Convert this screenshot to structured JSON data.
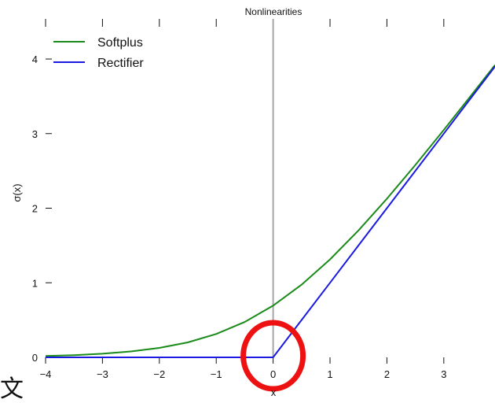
{
  "chart_data": {
    "type": "line",
    "title": "Nonlinearities",
    "xlabel": "x",
    "ylabel": "σ(x)",
    "xlim": [
      -4,
      3.9
    ],
    "ylim": [
      0,
      4
    ],
    "x_ticks": [
      -4,
      -3,
      -2,
      -1,
      0,
      1,
      2,
      3
    ],
    "y_ticks": [
      0,
      1,
      2,
      3,
      4
    ],
    "x": [
      -4,
      -3.5,
      -3,
      -2.5,
      -2,
      -1.5,
      -1,
      -0.5,
      0,
      0.5,
      1,
      1.5,
      2,
      2.5,
      3,
      3.5,
      3.9
    ],
    "series": [
      {
        "name": "Softplus",
        "color": "#1a8a1a",
        "values": [
          0.018,
          0.03,
          0.049,
          0.079,
          0.127,
          0.201,
          0.313,
          0.474,
          0.693,
          0.974,
          1.313,
          1.701,
          2.127,
          2.579,
          3.049,
          3.53,
          3.92
        ]
      },
      {
        "name": "Rectifier",
        "color": "#1a1ae0",
        "values": [
          0,
          0,
          0,
          0,
          0,
          0,
          0,
          0,
          0,
          0.5,
          1,
          1.5,
          2,
          2.5,
          3,
          3.5,
          3.9
        ]
      }
    ],
    "center_line_x": 0,
    "center_line_color": "#a6a6a6",
    "annotation": {
      "type": "circle",
      "center": [
        0,
        0
      ],
      "color": "#ee1111"
    },
    "legend": "top-left",
    "grid": false
  },
  "glyph": {
    "corner": "文"
  }
}
